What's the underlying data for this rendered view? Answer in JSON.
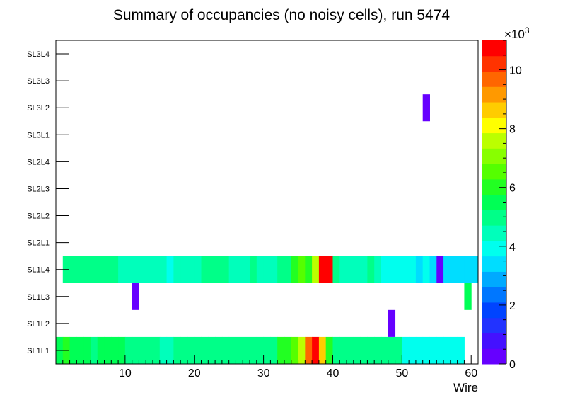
{
  "chart_data": {
    "type": "heatmap",
    "title": "Summary of occupancies (no noisy cells), run 5474",
    "xlabel": "Wire",
    "xlim": [
      0,
      61
    ],
    "x_ticks": [
      10,
      20,
      30,
      40,
      50,
      60
    ],
    "layers": [
      "SL1L1",
      "SL1L2",
      "SL1L3",
      "SL1L4",
      "SL2L1",
      "SL2L2",
      "SL2L3",
      "SL2L4",
      "SL3L1",
      "SL3L2",
      "SL3L3",
      "SL3L4"
    ],
    "colorbar": {
      "min": 0,
      "max": 11000,
      "ticks": [
        0,
        2,
        4,
        6,
        8,
        10
      ],
      "multiplier_base": "×10",
      "multiplier_exp": "3",
      "colors": [
        "#6600ff",
        "#4411ff",
        "#2233ff",
        "#0044ff",
        "#0077ff",
        "#00aaff",
        "#00ddff",
        "#00ffee",
        "#00ffbb",
        "#00ff88",
        "#00ff55",
        "#22ff22",
        "#55ff00",
        "#88ff00",
        "#bbff00",
        "#ffff00",
        "#ffcc00",
        "#ff9900",
        "#ff6600",
        "#ff3300",
        "#ff0000"
      ]
    },
    "cells": [
      {
        "layer": "SL1L1",
        "wire": 1,
        "value": 5500
      },
      {
        "layer": "SL1L1",
        "wire": 2,
        "value": 5900
      },
      {
        "layer": "SL1L1",
        "wire": 3,
        "value": 5500
      },
      {
        "layer": "SL1L1",
        "wire": 4,
        "value": 5500
      },
      {
        "layer": "SL1L1",
        "wire": 5,
        "value": 5500
      },
      {
        "layer": "SL1L1",
        "wire": 6,
        "value": 5200
      },
      {
        "layer": "SL1L1",
        "wire": 7,
        "value": 5500
      },
      {
        "layer": "SL1L1",
        "wire": 8,
        "value": 5500
      },
      {
        "layer": "SL1L1",
        "wire": 9,
        "value": 5500
      },
      {
        "layer": "SL1L1",
        "wire": 10,
        "value": 5500
      },
      {
        "layer": "SL1L1",
        "wire": 11,
        "value": 4800
      },
      {
        "layer": "SL1L1",
        "wire": 12,
        "value": 4800
      },
      {
        "layer": "SL1L1",
        "wire": 13,
        "value": 4800
      },
      {
        "layer": "SL1L1",
        "wire": 14,
        "value": 5200
      },
      {
        "layer": "SL1L1",
        "wire": 15,
        "value": 5200
      },
      {
        "layer": "SL1L1",
        "wire": 16,
        "value": 4300
      },
      {
        "layer": "SL1L1",
        "wire": 17,
        "value": 4300
      },
      {
        "layer": "SL1L1",
        "wire": 18,
        "value": 5200
      },
      {
        "layer": "SL1L1",
        "wire": 19,
        "value": 5200
      },
      {
        "layer": "SL1L1",
        "wire": 20,
        "value": 5200
      },
      {
        "layer": "SL1L1",
        "wire": 21,
        "value": 5200
      },
      {
        "layer": "SL1L1",
        "wire": 22,
        "value": 5200
      },
      {
        "layer": "SL1L1",
        "wire": 23,
        "value": 5200
      },
      {
        "layer": "SL1L1",
        "wire": 24,
        "value": 5200
      },
      {
        "layer": "SL1L1",
        "wire": 25,
        "value": 5200
      },
      {
        "layer": "SL1L1",
        "wire": 26,
        "value": 5200
      },
      {
        "layer": "SL1L1",
        "wire": 27,
        "value": 5200
      },
      {
        "layer": "SL1L1",
        "wire": 28,
        "value": 5200
      },
      {
        "layer": "SL1L1",
        "wire": 29,
        "value": 5200
      },
      {
        "layer": "SL1L1",
        "wire": 30,
        "value": 5200
      },
      {
        "layer": "SL1L1",
        "wire": 31,
        "value": 5200
      },
      {
        "layer": "SL1L1",
        "wire": 32,
        "value": 5200
      },
      {
        "layer": "SL1L1",
        "wire": 33,
        "value": 5900
      },
      {
        "layer": "SL1L1",
        "wire": 34,
        "value": 5900
      },
      {
        "layer": "SL1L1",
        "wire": 35,
        "value": 6800
      },
      {
        "layer": "SL1L1",
        "wire": 36,
        "value": 7600
      },
      {
        "layer": "SL1L1",
        "wire": 37,
        "value": 9800
      },
      {
        "layer": "SL1L1",
        "wire": 38,
        "value": 10900
      },
      {
        "layer": "SL1L1",
        "wire": 39,
        "value": 8600
      },
      {
        "layer": "SL1L1",
        "wire": 40,
        "value": 5900
      },
      {
        "layer": "SL1L1",
        "wire": 41,
        "value": 4800
      },
      {
        "layer": "SL1L1",
        "wire": 42,
        "value": 4800
      },
      {
        "layer": "SL1L1",
        "wire": 43,
        "value": 4800
      },
      {
        "layer": "SL1L1",
        "wire": 44,
        "value": 4800
      },
      {
        "layer": "SL1L1",
        "wire": 45,
        "value": 4800
      },
      {
        "layer": "SL1L1",
        "wire": 46,
        "value": 4800
      },
      {
        "layer": "SL1L1",
        "wire": 47,
        "value": 4800
      },
      {
        "layer": "SL1L1",
        "wire": 48,
        "value": 4800
      },
      {
        "layer": "SL1L1",
        "wire": 49,
        "value": 4800
      },
      {
        "layer": "SL1L1",
        "wire": 50,
        "value": 4800
      },
      {
        "layer": "SL1L1",
        "wire": 51,
        "value": 3900
      },
      {
        "layer": "SL1L1",
        "wire": 52,
        "value": 3900
      },
      {
        "layer": "SL1L1",
        "wire": 53,
        "value": 3900
      },
      {
        "layer": "SL1L1",
        "wire": 54,
        "value": 3900
      },
      {
        "layer": "SL1L1",
        "wire": 55,
        "value": 3900
      },
      {
        "layer": "SL1L1",
        "wire": 56,
        "value": 3900
      },
      {
        "layer": "SL1L1",
        "wire": 57,
        "value": 3900
      },
      {
        "layer": "SL1L1",
        "wire": 58,
        "value": 3900
      },
      {
        "layer": "SL1L1",
        "wire": 59,
        "value": 3900
      },
      {
        "layer": "SL1L2",
        "wire": 49,
        "value": 500
      },
      {
        "layer": "SL1L3",
        "wire": 12,
        "value": 500
      },
      {
        "layer": "SL1L3",
        "wire": 60,
        "value": 5300
      },
      {
        "layer": "SL1L4",
        "wire": 2,
        "value": 5200
      },
      {
        "layer": "SL1L4",
        "wire": 3,
        "value": 5200
      },
      {
        "layer": "SL1L4",
        "wire": 4,
        "value": 5200
      },
      {
        "layer": "SL1L4",
        "wire": 5,
        "value": 4800
      },
      {
        "layer": "SL1L4",
        "wire": 6,
        "value": 5200
      },
      {
        "layer": "SL1L4",
        "wire": 7,
        "value": 5200
      },
      {
        "layer": "SL1L4",
        "wire": 8,
        "value": 5200
      },
      {
        "layer": "SL1L4",
        "wire": 9,
        "value": 5200
      },
      {
        "layer": "SL1L4",
        "wire": 10,
        "value": 4300
      },
      {
        "layer": "SL1L4",
        "wire": 11,
        "value": 4300
      },
      {
        "layer": "SL1L4",
        "wire": 12,
        "value": 4300
      },
      {
        "layer": "SL1L4",
        "wire": 13,
        "value": 4300
      },
      {
        "layer": "SL1L4",
        "wire": 14,
        "value": 4300
      },
      {
        "layer": "SL1L4",
        "wire": 15,
        "value": 4300
      },
      {
        "layer": "SL1L4",
        "wire": 16,
        "value": 4300
      },
      {
        "layer": "SL1L4",
        "wire": 17,
        "value": 3900
      },
      {
        "layer": "SL1L4",
        "wire": 18,
        "value": 4300
      },
      {
        "layer": "SL1L4",
        "wire": 19,
        "value": 4300
      },
      {
        "layer": "SL1L4",
        "wire": 20,
        "value": 4300
      },
      {
        "layer": "SL1L4",
        "wire": 21,
        "value": 4300
      },
      {
        "layer": "SL1L4",
        "wire": 22,
        "value": 5200
      },
      {
        "layer": "SL1L4",
        "wire": 23,
        "value": 5200
      },
      {
        "layer": "SL1L4",
        "wire": 24,
        "value": 5200
      },
      {
        "layer": "SL1L4",
        "wire": 25,
        "value": 5200
      },
      {
        "layer": "SL1L4",
        "wire": 26,
        "value": 4300
      },
      {
        "layer": "SL1L4",
        "wire": 27,
        "value": 4300
      },
      {
        "layer": "SL1L4",
        "wire": 28,
        "value": 4300
      },
      {
        "layer": "SL1L4",
        "wire": 29,
        "value": 5200
      },
      {
        "layer": "SL1L4",
        "wire": 30,
        "value": 4300
      },
      {
        "layer": "SL1L4",
        "wire": 31,
        "value": 4300
      },
      {
        "layer": "SL1L4",
        "wire": 32,
        "value": 4300
      },
      {
        "layer": "SL1L4",
        "wire": 33,
        "value": 5200
      },
      {
        "layer": "SL1L4",
        "wire": 34,
        "value": 5200
      },
      {
        "layer": "SL1L4",
        "wire": 35,
        "value": 5900
      },
      {
        "layer": "SL1L4",
        "wire": 36,
        "value": 6300
      },
      {
        "layer": "SL1L4",
        "wire": 37,
        "value": 5900
      },
      {
        "layer": "SL1L4",
        "wire": 38,
        "value": 7600
      },
      {
        "layer": "SL1L4",
        "wire": 39,
        "value": 10700
      },
      {
        "layer": "SL1L4",
        "wire": 40,
        "value": 10700
      },
      {
        "layer": "SL1L4",
        "wire": 41,
        "value": 5200
      },
      {
        "layer": "SL1L4",
        "wire": 42,
        "value": 4300
      },
      {
        "layer": "SL1L4",
        "wire": 43,
        "value": 4300
      },
      {
        "layer": "SL1L4",
        "wire": 44,
        "value": 4300
      },
      {
        "layer": "SL1L4",
        "wire": 45,
        "value": 4300
      },
      {
        "layer": "SL1L4",
        "wire": 46,
        "value": 4800
      },
      {
        "layer": "SL1L4",
        "wire": 47,
        "value": 4300
      },
      {
        "layer": "SL1L4",
        "wire": 48,
        "value": 3900
      },
      {
        "layer": "SL1L4",
        "wire": 49,
        "value": 3900
      },
      {
        "layer": "SL1L4",
        "wire": 50,
        "value": 3900
      },
      {
        "layer": "SL1L4",
        "wire": 51,
        "value": 3900
      },
      {
        "layer": "SL1L4",
        "wire": 52,
        "value": 3900
      },
      {
        "layer": "SL1L4",
        "wire": 53,
        "value": 3200
      },
      {
        "layer": "SL1L4",
        "wire": 54,
        "value": 3900
      },
      {
        "layer": "SL1L4",
        "wire": 55,
        "value": 3200
      },
      {
        "layer": "SL1L4",
        "wire": 56,
        "value": 500
      },
      {
        "layer": "SL1L4",
        "wire": 57,
        "value": 3200
      },
      {
        "layer": "SL1L4",
        "wire": 58,
        "value": 3200
      },
      {
        "layer": "SL1L4",
        "wire": 59,
        "value": 3200
      },
      {
        "layer": "SL1L4",
        "wire": 60,
        "value": 3200
      },
      {
        "layer": "SL1L4",
        "wire": 61,
        "value": 3200
      },
      {
        "layer": "SL3L2",
        "wire": 54,
        "value": 500
      }
    ]
  }
}
